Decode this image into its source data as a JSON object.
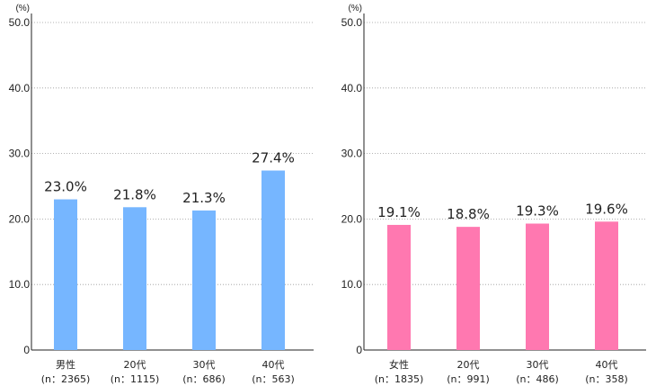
{
  "chart_data": [
    {
      "type": "bar",
      "unit": "(%)",
      "ylim": [
        0,
        50
      ],
      "yticks": [
        "0",
        "10.0",
        "20.0",
        "30.0",
        "40.0",
        "50.0"
      ],
      "grid": true,
      "color": "#76b6ff",
      "categories": [
        {
          "label": "男性",
          "n": "(n：2365)"
        },
        {
          "label": "20代",
          "n": "(n：1115)"
        },
        {
          "label": "30代",
          "n": "(n：686)"
        },
        {
          "label": "40代",
          "n": "(n：563)"
        }
      ],
      "values": [
        23.0,
        21.8,
        21.3,
        27.4
      ],
      "value_labels": [
        "23.0%",
        "21.8%",
        "21.3%",
        "27.4%"
      ]
    },
    {
      "type": "bar",
      "unit": "(%)",
      "ylim": [
        0,
        50
      ],
      "yticks": [
        "0",
        "10.0",
        "20.0",
        "30.0",
        "40.0",
        "50.0"
      ],
      "grid": true,
      "color": "#ff78b0",
      "categories": [
        {
          "label": "女性",
          "n": "(n：1835)"
        },
        {
          "label": "20代",
          "n": "(n：991)"
        },
        {
          "label": "30代",
          "n": "(n：486)"
        },
        {
          "label": "40代",
          "n": "(n：358)"
        }
      ],
      "values": [
        19.1,
        18.8,
        19.3,
        19.6
      ],
      "value_labels": [
        "19.1%",
        "18.8%",
        "19.3%",
        "19.6%"
      ]
    }
  ]
}
